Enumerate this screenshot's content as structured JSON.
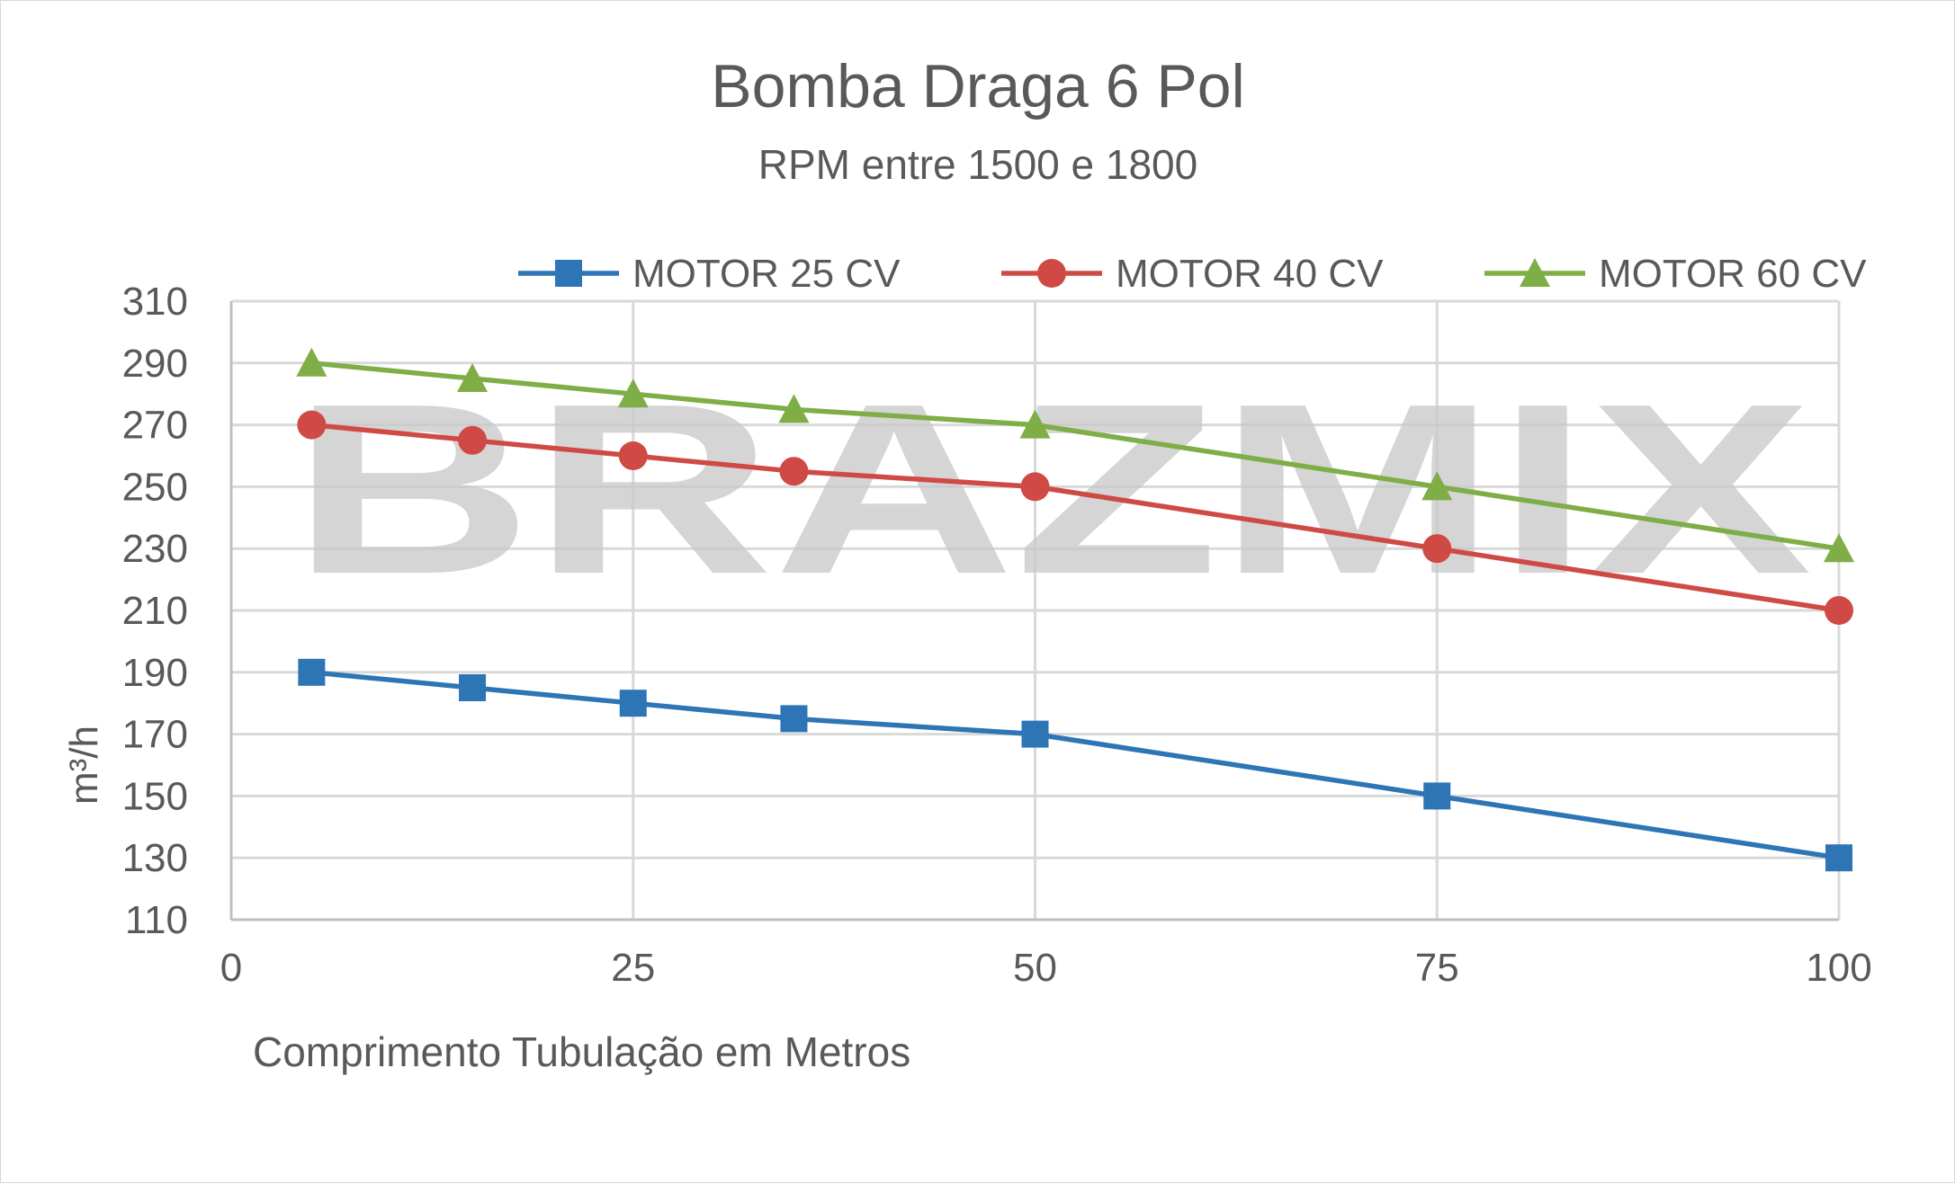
{
  "chart_data": {
    "type": "line",
    "title": "Bomba Draga 6 Pol",
    "subtitle": "RPM entre 1500 e 1800",
    "xlabel": "Comprimento Tubulação em Metros",
    "ylabel": "m³/h",
    "watermark": "BRAZMIX",
    "xlim": [
      0,
      100
    ],
    "ylim": [
      110,
      310
    ],
    "xticks": [
      0,
      25,
      50,
      75,
      100
    ],
    "yticks": [
      110,
      130,
      150,
      170,
      190,
      210,
      230,
      250,
      270,
      290,
      310
    ],
    "grid": true,
    "legend_position": "top",
    "series": [
      {
        "name": "MOTOR 25 CV",
        "color": "#2e75b6",
        "marker": "square",
        "x": [
          5,
          15,
          25,
          35,
          50,
          75,
          100
        ],
        "y": [
          190,
          185,
          180,
          175,
          170,
          150,
          130
        ]
      },
      {
        "name": "MOTOR 40 CV",
        "color": "#d04a45",
        "marker": "circle",
        "x": [
          5,
          15,
          25,
          35,
          50,
          75,
          100
        ],
        "y": [
          270,
          265,
          260,
          255,
          250,
          230,
          210
        ]
      },
      {
        "name": "MOTOR 60 CV",
        "color": "#7fae47",
        "marker": "triangle",
        "x": [
          5,
          15,
          25,
          35,
          50,
          75,
          100
        ],
        "y": [
          290,
          285,
          280,
          275,
          270,
          250,
          230
        ]
      }
    ]
  }
}
